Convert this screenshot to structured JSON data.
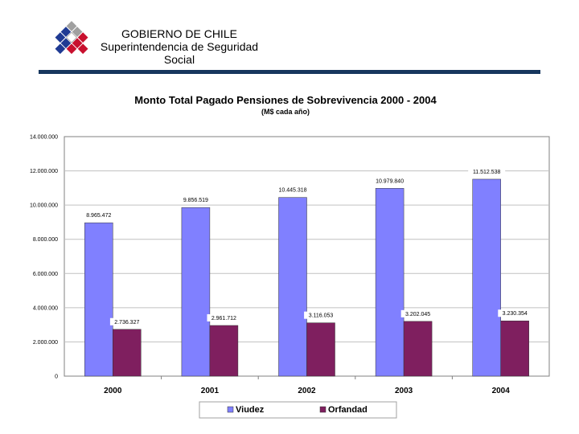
{
  "header": {
    "org_line1": "GOBIERNO DE CHILE",
    "org_line2": "Superintendencia de Seguridad",
    "org_line3": "Social"
  },
  "colors": {
    "viudez": "#8080ff",
    "orfandad": "#7f1f5f",
    "rule": "#17375e",
    "grid": "#c0c0c0",
    "logo_red": "#c8102e",
    "logo_blue": "#1f3a93",
    "logo_grey": "#a0a0a0"
  },
  "chart_data": {
    "type": "bar",
    "title": "Monto Total Pagado Pensiones de Sobrevivencia 2000 - 2004",
    "subtitle": "(M$ cada año)",
    "xlabel": "",
    "ylabel": "",
    "categories": [
      "2000",
      "2001",
      "2002",
      "2003",
      "2004"
    ],
    "series": [
      {
        "name": "Viudez",
        "values": [
          8965472,
          9856519,
          10445318,
          10979840,
          11512538
        ],
        "labels": [
          "8.965.472",
          "9.856.519",
          "10.445.318",
          "10.979.840",
          "11.512.538"
        ]
      },
      {
        "name": "Orfandad",
        "values": [
          2736327,
          2961712,
          3116053,
          3202045,
          3230354
        ],
        "labels": [
          "2.736.327",
          "2.961.712",
          "3.116.053",
          "3.202.045",
          "3.230.354"
        ]
      }
    ],
    "ylim": [
      0,
      14000000
    ],
    "yticks": [
      "0",
      "2.000.000",
      "4.000.000",
      "6.000.000",
      "8.000.000",
      "10.000.000",
      "12.000.000",
      "14.000.000"
    ],
    "grid": true,
    "legend": "bottom"
  }
}
